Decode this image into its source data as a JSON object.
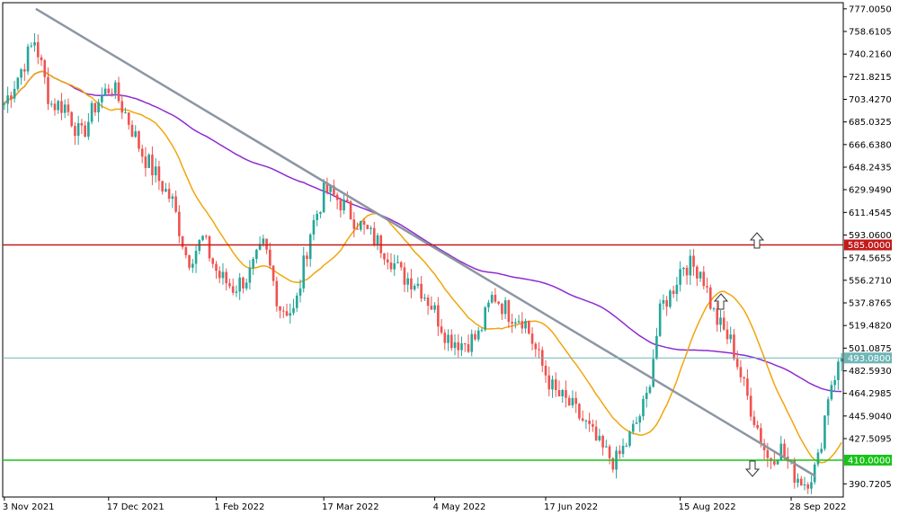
{
  "chart_data": {
    "type": "candlestick",
    "colors": {
      "up": "#26a69a",
      "down": "#ef5350",
      "ma_fast": "#f2a50c",
      "ma_slow": "#8e2bd1",
      "trendline": "#8c96a3",
      "resistance": "#c41a1a",
      "support": "#18c418",
      "current_price": "#6fb6b6",
      "grid_frame": "#000000"
    },
    "y_ticks": [
      "777.0050",
      "758.6105",
      "740.2160",
      "721.8215",
      "703.4270",
      "685.0325",
      "666.6380",
      "648.2435",
      "629.9490",
      "611.4545",
      "593.0600",
      "574.5655",
      "556.2710",
      "537.8765",
      "519.4820",
      "501.0875",
      "482.5930",
      "464.2985",
      "445.9040",
      "427.5095",
      "390.7205"
    ],
    "y_min": 380,
    "y_max": 782,
    "x_ticks": [
      "3 Nov 2021",
      "17 Dec 2021",
      "1 Feb 2022",
      "17 Mar 2022",
      "4 May 2022",
      "17 Jun 2022",
      "15 Aug 2022",
      "28 Sep 2022"
    ],
    "x_tick_index": [
      0,
      31,
      63,
      95,
      128,
      161,
      201,
      234
    ],
    "price_levels": [
      {
        "name": "resistance",
        "value": 585.0,
        "label": "585.0000"
      },
      {
        "name": "current-price",
        "value": 493.08,
        "label": "493.0800"
      },
      {
        "name": "support",
        "value": 410.0,
        "label": "410.0000"
      }
    ],
    "trendline": {
      "start": [
        0,
        777.0
      ],
      "end": [
        246,
        397.0
      ]
    },
    "arrows": [
      {
        "name": "up-arrow",
        "direction": "up"
      },
      {
        "name": "up-arrow",
        "direction": "up"
      },
      {
        "name": "down-arrow",
        "direction": "down"
      }
    ]
  }
}
